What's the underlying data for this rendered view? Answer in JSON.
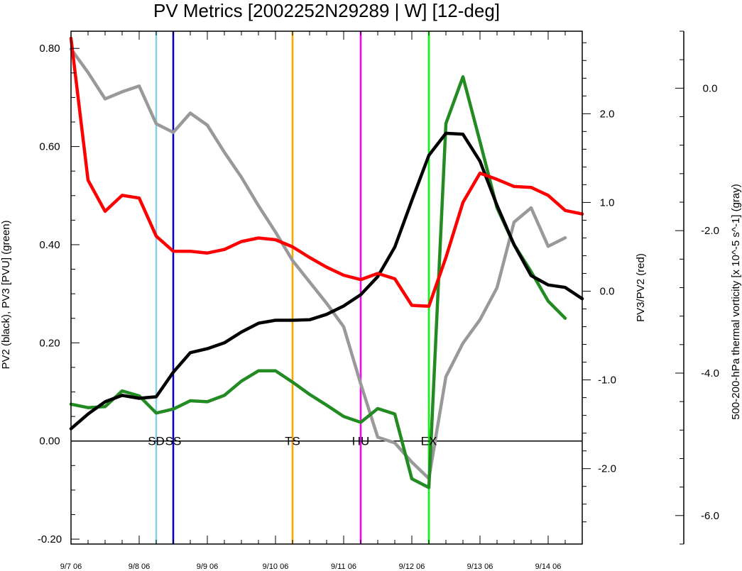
{
  "chart_data": {
    "type": "line",
    "title": "PV Metrics [2002252N29289 | W] [12-deg]",
    "left_axis": {
      "label": "PV2 (black), PV3 [PVU] (green)",
      "ylim": [
        -0.21,
        0.835
      ],
      "ticks": [
        -0.2,
        0.0,
        0.2,
        0.4,
        0.6,
        0.8
      ],
      "tick_labels": [
        "-0.20",
        "0.00",
        "0.20",
        "0.40",
        "0.60",
        "0.80"
      ]
    },
    "right_axis_1": {
      "label": "PV3/PV2 (red)",
      "ylim": [
        -2.85,
        2.93
      ],
      "ticks": [
        -2,
        -1,
        0,
        1,
        2
      ],
      "tick_labels": [
        "-2.0",
        "-1.0",
        "0.0",
        "1.0",
        "2.0"
      ]
    },
    "right_axis_2": {
      "label": "500-200-hPa thermal vorticity [x 10^-5 s^-1] (gray)",
      "ylim": [
        -6.4,
        0.8
      ],
      "ticks": [
        -6,
        -4,
        -2,
        0
      ],
      "tick_labels": [
        "-6.0",
        "-4.0",
        "-2.0",
        "0.0"
      ]
    },
    "x_axis": {
      "xlim": [
        0,
        7.5
      ],
      "ticks": [
        0,
        1,
        2,
        3,
        4,
        5,
        6,
        7
      ],
      "tick_labels": [
        "9/7 06",
        "9/8 06",
        "9/9 06",
        "9/10 06",
        "9/11 06",
        "9/12 06",
        "9/13 06",
        "9/14 06"
      ]
    },
    "x": [
      0,
      0.25,
      0.5,
      0.75,
      1.0,
      1.25,
      1.5,
      1.75,
      2.0,
      2.25,
      2.5,
      2.75,
      3.0,
      3.25,
      3.5,
      3.75,
      4.0,
      4.25,
      4.5,
      4.75,
      5.0,
      5.25,
      5.5,
      5.75,
      6.0,
      6.25,
      6.5,
      6.75,
      7.0,
      7.25,
      7.5
    ],
    "series": [
      {
        "axis": "left",
        "color": "#000000",
        "values": [
          0.025,
          0.055,
          0.08,
          0.093,
          0.087,
          0.09,
          0.14,
          0.18,
          0.188,
          0.2,
          0.222,
          0.24,
          0.246,
          0.246,
          0.247,
          0.258,
          0.275,
          0.298,
          0.335,
          0.395,
          0.49,
          0.582,
          0.627,
          0.625,
          0.57,
          0.48,
          0.4,
          0.337,
          0.318,
          0.313,
          0.29
        ]
      },
      {
        "axis": "left",
        "color": "#228b22",
        "values": [
          0.075,
          0.068,
          0.07,
          0.102,
          0.092,
          0.057,
          0.065,
          0.082,
          0.08,
          0.093,
          0.122,
          0.143,
          0.143,
          0.12,
          0.095,
          0.073,
          0.05,
          0.038,
          0.066,
          0.055,
          -0.077,
          -0.095,
          0.647,
          0.742,
          0.61,
          0.475,
          0.4,
          0.345,
          0.285,
          0.25,
          null
        ]
      },
      {
        "axis": "right_1",
        "color": "#ff0000",
        "values": [
          2.85,
          1.25,
          0.9,
          1.08,
          1.05,
          0.62,
          0.45,
          0.45,
          0.43,
          0.47,
          0.56,
          0.6,
          0.58,
          0.5,
          0.38,
          0.27,
          0.18,
          0.13,
          0.2,
          0.14,
          -0.16,
          -0.17,
          0.38,
          1.0,
          1.33,
          1.26,
          1.18,
          1.17,
          1.08,
          0.91,
          0.87
        ]
      },
      {
        "axis": "right_2",
        "color": "#999999",
        "values": [
          0.55,
          0.22,
          -0.15,
          -0.05,
          0.03,
          -0.5,
          -0.62,
          -0.35,
          -0.52,
          -0.9,
          -1.25,
          -1.65,
          -2.02,
          -2.42,
          -2.72,
          -3.02,
          -3.35,
          -4.15,
          -4.9,
          -4.98,
          -5.25,
          -5.48,
          -4.05,
          -3.58,
          -3.25,
          -2.8,
          -1.88,
          -1.68,
          -2.22,
          -2.1,
          null
        ]
      }
    ],
    "events": [
      {
        "x": 1.25,
        "color": "#87ceeb",
        "label": "SD"
      },
      {
        "x": 1.5,
        "color": "#0000cd",
        "label": "SS"
      },
      {
        "x": 3.25,
        "color": "#ffa500",
        "label": "TS"
      },
      {
        "x": 4.25,
        "color": "#ff00ff",
        "label": "HU"
      },
      {
        "x": 5.25,
        "color": "#00ff00",
        "label": "EX"
      }
    ],
    "zero_line": true,
    "grid": false,
    "legend": "none"
  }
}
